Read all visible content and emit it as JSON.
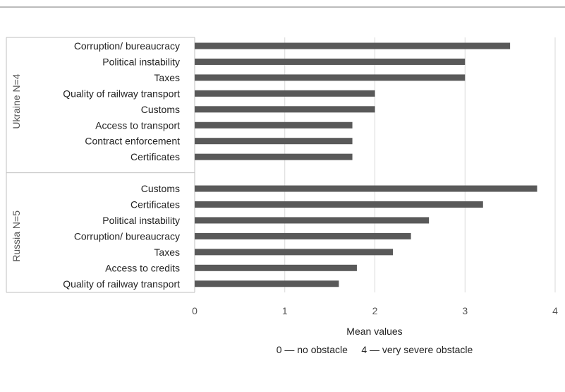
{
  "chart_data": {
    "type": "bar",
    "orientation": "horizontal",
    "xlim": [
      0,
      4
    ],
    "x_ticks": [
      "0",
      "1",
      "2",
      "3",
      "4"
    ],
    "xlabel": "Mean values",
    "xlabel_note": "0 — no obstacle     4 — very severe obstacle",
    "grid": "vertical",
    "legend": "none",
    "bar_color": "#595959",
    "groups": [
      {
        "label": "Ukraine N=4",
        "categories": [
          "Corruption/ bureaucracy",
          "Political instability",
          "Taxes",
          "Quality of railway transport",
          "Customs",
          "Access to transport",
          "Contract enforcement",
          "Certificates"
        ],
        "values": [
          3.5,
          3.0,
          3.0,
          2.0,
          2.0,
          1.75,
          1.75,
          1.75
        ]
      },
      {
        "label": "Russia N=5",
        "categories": [
          "Customs",
          "Certificates",
          "Political instability",
          "Corruption/ bureaucracy",
          "Taxes",
          "Access to credits",
          "Quality of railway transport"
        ],
        "values": [
          3.8,
          3.2,
          2.6,
          2.4,
          2.2,
          1.8,
          1.6
        ]
      }
    ]
  }
}
